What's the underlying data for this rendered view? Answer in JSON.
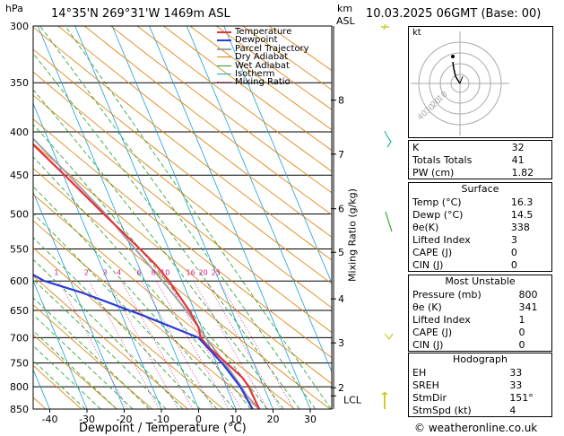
{
  "header": {
    "pressure_unit": "hPa",
    "location": "14°35'N  269°31'W  1469m  ASL",
    "height_unit_km": "km",
    "height_unit_asl": "ASL",
    "datetime": "10.03.2025  06GMT  (Base: 00)"
  },
  "chart_data": {
    "type": "line",
    "title": "14°35'N  269°31'W  1469m  ASL",
    "xlabel": "Dewpoint / Temperature (°C)",
    "ylabel": "hPa",
    "right_axis_label": "Mixing Ratio (g/kg)",
    "xlim": [
      -40,
      35
    ],
    "ylim": [
      850,
      300
    ],
    "pressure_ticks": [
      300,
      350,
      400,
      450,
      500,
      550,
      600,
      650,
      700,
      750,
      800,
      850
    ],
    "temperature_ticks": [
      -40,
      -30,
      -20,
      -10,
      0,
      10,
      20,
      30
    ],
    "km_ticks": [
      {
        "km": "8",
        "p": 367
      },
      {
        "km": "7",
        "p": 425
      },
      {
        "km": "6",
        "p": 493
      },
      {
        "km": "5",
        "p": 555
      },
      {
        "km": "4",
        "p": 630
      },
      {
        "km": "3",
        "p": 710
      },
      {
        "km": "2",
        "p": 802
      }
    ],
    "lcl_label": "LCL",
    "lcl_pressure": 820,
    "mixing_ratio_labels": [
      "1",
      "2",
      "3",
      "4",
      "6",
      "8",
      "10",
      "16",
      "20",
      "25"
    ],
    "mixing_ratio_label_pressure": 592,
    "series": [
      {
        "name": "Temperature",
        "color": "#e8323c",
        "points": [
          [
            850,
            16.3
          ],
          [
            800,
            16.0
          ],
          [
            780,
            15.3
          ],
          [
            750,
            12.7
          ],
          [
            720,
            9.8
          ],
          [
            700,
            8.6
          ],
          [
            680,
            9.2
          ],
          [
            650,
            8.6
          ],
          [
            600,
            6.5
          ],
          [
            575,
            4.8
          ],
          [
            550,
            2.3
          ],
          [
            500,
            -3.5
          ],
          [
            450,
            -9.6
          ],
          [
            400,
            -16.7
          ],
          [
            350,
            -25.0
          ],
          [
            300,
            -33.8
          ]
        ]
      },
      {
        "name": "Dewpoint",
        "color": "#2a3cd8",
        "points": [
          [
            850,
            14.5
          ],
          [
            800,
            13.7
          ],
          [
            750,
            11.5
          ],
          [
            700,
            8.0
          ],
          [
            660,
            -4.0
          ],
          [
            620,
            -18.0
          ],
          [
            600,
            -27.0
          ],
          [
            575,
            -33.0
          ],
          [
            550,
            -37.5
          ],
          [
            500,
            -36.5
          ],
          [
            450,
            -37.5
          ],
          [
            400,
            -38.0
          ],
          [
            350,
            -43.0
          ],
          [
            300,
            -48.0
          ]
        ]
      },
      {
        "name": "Parcel Trajectory",
        "color": "#a0a0a0",
        "points": [
          [
            850,
            16.3
          ],
          [
            820,
            14.5
          ],
          [
            800,
            14.0
          ],
          [
            750,
            12.2
          ],
          [
            700,
            10.0
          ],
          [
            650,
            7.8
          ],
          [
            600,
            4.8
          ],
          [
            550,
            1.0
          ],
          [
            500,
            -3.0
          ],
          [
            450,
            -8.5
          ],
          [
            400,
            -15.0
          ],
          [
            350,
            -23.5
          ],
          [
            300,
            -32.5
          ]
        ]
      }
    ],
    "legend": [
      {
        "label": "Temperature",
        "color": "#e8323c",
        "style": "solid"
      },
      {
        "label": "Dewpoint",
        "color": "#2a3cd8",
        "style": "solid"
      },
      {
        "label": "Parcel Trajectory",
        "color": "#a0a0a0",
        "style": "solid"
      },
      {
        "label": "Dry Adiabat",
        "color": "#e07b00",
        "style": "solid"
      },
      {
        "label": "Wet Adiabat",
        "color": "#1f9e1f",
        "style": "solid"
      },
      {
        "label": "Isotherm",
        "color": "#19a0d8",
        "style": "solid"
      },
      {
        "label": "Mixing Ratio",
        "color": "#d01c8b",
        "style": "dotted"
      }
    ],
    "legend_position": "top-right"
  },
  "hodograph": {
    "unit": "kt",
    "ring_labels": [
      "10",
      "20",
      "30",
      "40"
    ]
  },
  "indices": [
    {
      "label": "K",
      "value": "32"
    },
    {
      "label": "Totals Totals",
      "value": "41"
    },
    {
      "label": "PW (cm)",
      "value": "1.82"
    }
  ],
  "surface": {
    "title": "Surface",
    "rows": [
      {
        "label": "Temp (°C)",
        "value": "16.3"
      },
      {
        "label": "Dewp (°C)",
        "value": "14.5"
      },
      {
        "label": "θe(K)",
        "value": "338"
      },
      {
        "label": "Lifted Index",
        "value": "3"
      },
      {
        "label": "CAPE (J)",
        "value": "0"
      },
      {
        "label": "CIN (J)",
        "value": "0"
      }
    ]
  },
  "most_unstable": {
    "title": "Most Unstable",
    "rows": [
      {
        "label": "Pressure (mb)",
        "value": "800"
      },
      {
        "label": "θe (K)",
        "value": "341"
      },
      {
        "label": "Lifted Index",
        "value": "1"
      },
      {
        "label": "CAPE (J)",
        "value": "0"
      },
      {
        "label": "CIN (J)",
        "value": "0"
      }
    ]
  },
  "hodograph_table": {
    "title": "Hodograph",
    "rows": [
      {
        "label": "EH",
        "value": "33"
      },
      {
        "label": "SREH",
        "value": "33"
      },
      {
        "label": "StmDir",
        "value": "151°"
      },
      {
        "label": "StmSpd (kt)",
        "value": "4"
      }
    ]
  },
  "footer": {
    "copyright": "© weatheronline.co.uk"
  }
}
